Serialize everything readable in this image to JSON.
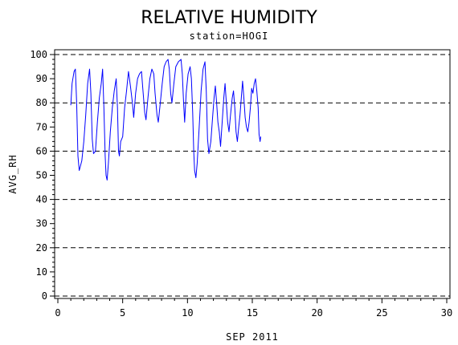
{
  "chart_data": {
    "type": "line",
    "title": "RELATIVE HUMIDITY",
    "subtitle": "station=HOGI",
    "xlabel": "SEP 2011",
    "ylabel": "AVG_RH",
    "xlim": [
      0,
      30
    ],
    "ylim": [
      0,
      100
    ],
    "xticks": [
      0,
      5,
      10,
      15,
      20,
      25,
      30
    ],
    "yticks": [
      0,
      10,
      20,
      30,
      40,
      50,
      60,
      70,
      80,
      90,
      100
    ],
    "reference_lines": [
      0,
      20,
      40,
      60,
      80,
      100
    ],
    "grid": false,
    "series": [
      {
        "color": "#0000ff",
        "points": [
          [
            1.0,
            79
          ],
          [
            1.1,
            88
          ],
          [
            1.25,
            93
          ],
          [
            1.35,
            94
          ],
          [
            1.45,
            80
          ],
          [
            1.55,
            58
          ],
          [
            1.65,
            52
          ],
          [
            1.75,
            54
          ],
          [
            1.85,
            56
          ],
          [
            2.0,
            64
          ],
          [
            2.15,
            75
          ],
          [
            2.3,
            88
          ],
          [
            2.45,
            94
          ],
          [
            2.55,
            84
          ],
          [
            2.65,
            65
          ],
          [
            2.75,
            59
          ],
          [
            2.9,
            60
          ],
          [
            3.05,
            72
          ],
          [
            3.2,
            82
          ],
          [
            3.35,
            88
          ],
          [
            3.45,
            94
          ],
          [
            3.55,
            78
          ],
          [
            3.65,
            58
          ],
          [
            3.72,
            50
          ],
          [
            3.8,
            48
          ],
          [
            3.9,
            55
          ],
          [
            4.05,
            68
          ],
          [
            4.2,
            78
          ],
          [
            4.35,
            85
          ],
          [
            4.5,
            90
          ],
          [
            4.6,
            78
          ],
          [
            4.68,
            60
          ],
          [
            4.75,
            58
          ],
          [
            4.85,
            64
          ],
          [
            5.0,
            66
          ],
          [
            5.15,
            78
          ],
          [
            5.3,
            85
          ],
          [
            5.45,
            93
          ],
          [
            5.6,
            87
          ],
          [
            5.75,
            80
          ],
          [
            5.85,
            74
          ],
          [
            6.0,
            84
          ],
          [
            6.15,
            90
          ],
          [
            6.3,
            92
          ],
          [
            6.45,
            93
          ],
          [
            6.55,
            86
          ],
          [
            6.7,
            76
          ],
          [
            6.8,
            73
          ],
          [
            6.95,
            82
          ],
          [
            7.1,
            90
          ],
          [
            7.25,
            94
          ],
          [
            7.4,
            92
          ],
          [
            7.5,
            84
          ],
          [
            7.65,
            75
          ],
          [
            7.75,
            72
          ],
          [
            7.9,
            80
          ],
          [
            8.05,
            88
          ],
          [
            8.2,
            95
          ],
          [
            8.35,
            97
          ],
          [
            8.5,
            98
          ],
          [
            8.6,
            94
          ],
          [
            8.7,
            84
          ],
          [
            8.8,
            80
          ],
          [
            8.95,
            88
          ],
          [
            9.1,
            95
          ],
          [
            9.3,
            97
          ],
          [
            9.5,
            98
          ],
          [
            9.6,
            92
          ],
          [
            9.7,
            80
          ],
          [
            9.78,
            72
          ],
          [
            9.9,
            84
          ],
          [
            10.05,
            92
          ],
          [
            10.2,
            95
          ],
          [
            10.3,
            90
          ],
          [
            10.4,
            76
          ],
          [
            10.48,
            60
          ],
          [
            10.55,
            52
          ],
          [
            10.65,
            49
          ],
          [
            10.75,
            55
          ],
          [
            10.9,
            70
          ],
          [
            11.05,
            85
          ],
          [
            11.2,
            94
          ],
          [
            11.35,
            97
          ],
          [
            11.45,
            85
          ],
          [
            11.55,
            65
          ],
          [
            11.65,
            59
          ],
          [
            11.8,
            64
          ],
          [
            11.95,
            75
          ],
          [
            12.05,
            82
          ],
          [
            12.15,
            87
          ],
          [
            12.25,
            80
          ],
          [
            12.35,
            72
          ],
          [
            12.45,
            68
          ],
          [
            12.55,
            62
          ],
          [
            12.65,
            70
          ],
          [
            12.8,
            82
          ],
          [
            12.9,
            88
          ],
          [
            13.0,
            80
          ],
          [
            13.1,
            72
          ],
          [
            13.2,
            68
          ],
          [
            13.3,
            74
          ],
          [
            13.45,
            82
          ],
          [
            13.55,
            85
          ],
          [
            13.65,
            78
          ],
          [
            13.75,
            68
          ],
          [
            13.85,
            64
          ],
          [
            13.95,
            70
          ],
          [
            14.05,
            75
          ],
          [
            14.15,
            82
          ],
          [
            14.25,
            89
          ],
          [
            14.35,
            82
          ],
          [
            14.45,
            74
          ],
          [
            14.55,
            70
          ],
          [
            14.65,
            68
          ],
          [
            14.75,
            72
          ],
          [
            14.85,
            78
          ],
          [
            14.95,
            86
          ],
          [
            15.05,
            84
          ],
          [
            15.15,
            88
          ],
          [
            15.25,
            90
          ],
          [
            15.35,
            85
          ],
          [
            15.45,
            78
          ],
          [
            15.52,
            67
          ],
          [
            15.6,
            64
          ],
          [
            15.65,
            66
          ]
        ]
      }
    ]
  }
}
